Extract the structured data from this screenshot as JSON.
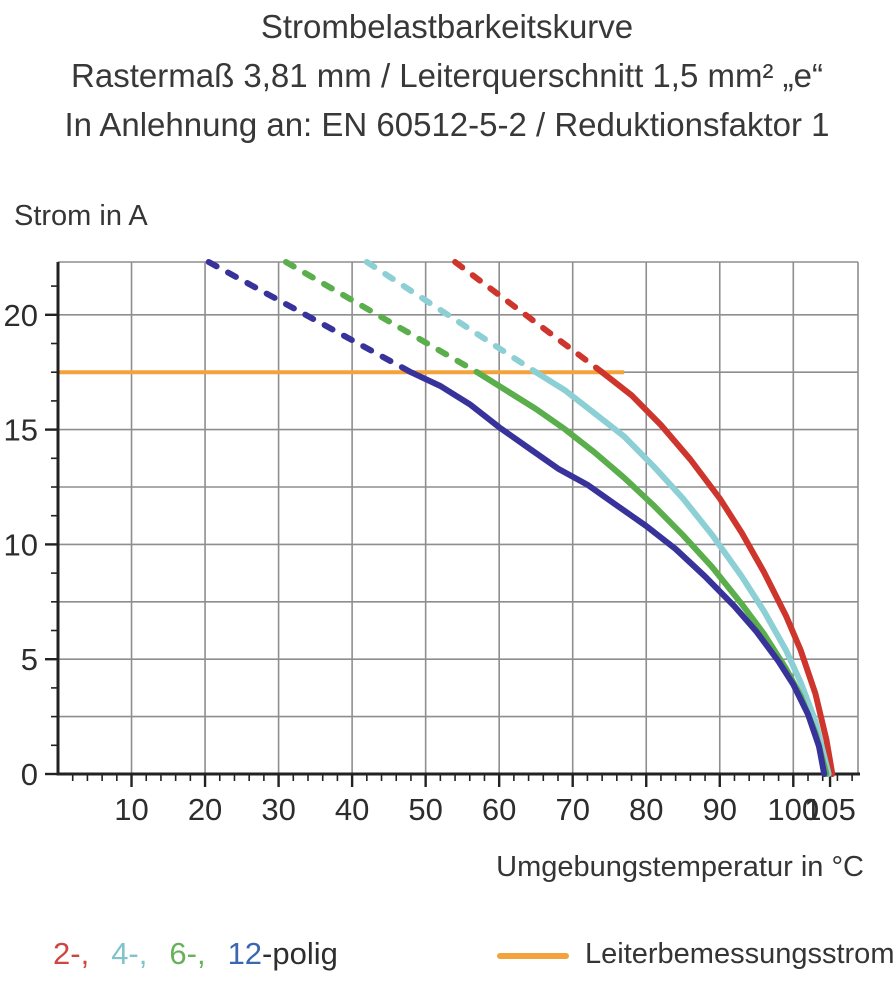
{
  "title": {
    "line1": "Strombelastbarkeitskurve",
    "line2": "Rastermaß 3,81 mm / Leiterquerschnitt 1,5 mm² „e“",
    "line3": "In Anlehnung an: EN 60512-5-2 / Reduktionsfaktor 1"
  },
  "axes": {
    "y_title": "Strom in A",
    "x_title": "Umgebungstemperatur in °C"
  },
  "legend": {
    "poles": [
      {
        "label": "2-,",
        "color": "#CE4640"
      },
      {
        "label": "4-,",
        "color": "#7FC3CB"
      },
      {
        "label": "6-,",
        "color": "#66B258"
      },
      {
        "label": "12",
        "color": "#3B67B1"
      },
      {
        "label": "-polig",
        "color": "#2E2E2E"
      }
    ],
    "reference": {
      "label": "Leiterbemessungsstrom",
      "color": "#F4A23B"
    }
  },
  "chart_data": {
    "type": "line",
    "title": "Strombelastbarkeitskurve",
    "xlabel": "Umgebungstemperatur in °C",
    "ylabel": "Strom in A",
    "xlim": [
      0,
      108.8
    ],
    "ylim": [
      0,
      22.3
    ],
    "x_ticks": [
      10,
      20,
      30,
      40,
      50,
      60,
      70,
      80,
      90,
      100,
      105
    ],
    "y_ticks": [
      0,
      5,
      10,
      15,
      20
    ],
    "x_grid_step": 10,
    "y_grid_step": 2.5,
    "x_minor_tick_step": 2,
    "y_minor_tick_step": 1.25,
    "grid": true,
    "legend_position": "bottom",
    "grid_color": "#8E8E8E",
    "axis_color": "#222222",
    "reference_line": {
      "name": "Leiterbemessungsstrom",
      "current_a": 17.5,
      "x_span": [
        0,
        77
      ],
      "color": "#F4A23B"
    },
    "series": [
      {
        "name": "2-polig",
        "color": "#CE352C",
        "dashed_above_reference": [
          [
            54,
            22.3
          ],
          [
            74,
            17.5
          ]
        ],
        "solid": [
          [
            74,
            17.5
          ],
          [
            78,
            16.5
          ],
          [
            82,
            15.2
          ],
          [
            86,
            13.7
          ],
          [
            90,
            12.0
          ],
          [
            93,
            10.5
          ],
          [
            96,
            8.8
          ],
          [
            99,
            6.9
          ],
          [
            101,
            5.4
          ],
          [
            103,
            3.5
          ],
          [
            104.5,
            1.5
          ],
          [
            105.3,
            0
          ]
        ]
      },
      {
        "name": "4-polig",
        "color": "#8CCFD5",
        "dashed_above_reference": [
          [
            42,
            22.3
          ],
          [
            65,
            17.5
          ]
        ],
        "solid": [
          [
            65,
            17.5
          ],
          [
            69,
            16.7
          ],
          [
            73,
            15.7
          ],
          [
            77,
            14.7
          ],
          [
            81,
            13.4
          ],
          [
            85,
            12.0
          ],
          [
            89,
            10.4
          ],
          [
            93,
            8.6
          ],
          [
            96,
            7.1
          ],
          [
            99,
            5.4
          ],
          [
            101,
            4.0
          ],
          [
            103,
            2.3
          ],
          [
            104.8,
            0
          ]
        ]
      },
      {
        "name": "6-polig",
        "color": "#5AAE4B",
        "dashed_above_reference": [
          [
            31,
            22.3
          ],
          [
            57,
            17.5
          ]
        ],
        "solid": [
          [
            57,
            17.5
          ],
          [
            61,
            16.7
          ],
          [
            65,
            15.9
          ],
          [
            69,
            15.0
          ],
          [
            73,
            14.0
          ],
          [
            77,
            12.9
          ],
          [
            81,
            11.7
          ],
          [
            85,
            10.4
          ],
          [
            89,
            9.0
          ],
          [
            93,
            7.4
          ],
          [
            96,
            6.1
          ],
          [
            99,
            4.6
          ],
          [
            101,
            3.4
          ],
          [
            103,
            1.8
          ],
          [
            104.5,
            0
          ]
        ]
      },
      {
        "name": "12-polig",
        "color": "#37339B",
        "dashed_above_reference": [
          [
            20.5,
            22.3
          ],
          [
            48,
            17.5
          ]
        ],
        "solid": [
          [
            48,
            17.5
          ],
          [
            52,
            16.9
          ],
          [
            56,
            16.1
          ],
          [
            60,
            15.1
          ],
          [
            64,
            14.2
          ],
          [
            68,
            13.3
          ],
          [
            72,
            12.6
          ],
          [
            76,
            11.7
          ],
          [
            80,
            10.8
          ],
          [
            84,
            9.8
          ],
          [
            88,
            8.6
          ],
          [
            92,
            7.3
          ],
          [
            95,
            6.2
          ],
          [
            98,
            4.9
          ],
          [
            100,
            3.9
          ],
          [
            102,
            2.6
          ],
          [
            103.5,
            1.2
          ],
          [
            104.2,
            0
          ]
        ]
      }
    ]
  }
}
